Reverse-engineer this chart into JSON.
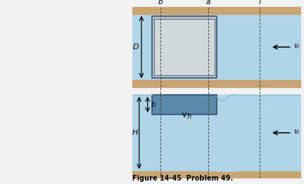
{
  "fig_width": 4.32,
  "fig_height": 2.62,
  "dpi": 100,
  "sand_color": "#c8a472",
  "water_color": "#b0d4e8",
  "water_dark": "#8abcd4",
  "barge_top_gray": "#b8bfc4",
  "barge_inner_light": "#d0d8dc",
  "barge_side_blue": "#5a8aaa",
  "barge_outline": "#2a4a6a",
  "figure_caption": "Figure 14-45  Problem 49.",
  "label_D": "D",
  "label_H": "H",
  "label_d": "d",
  "label_b": "b",
  "label_h": "h",
  "label_a": "a",
  "label_b_pt": "b",
  "label_i": "i",
  "label_vi": "$v_i$",
  "bg_color": "#f2f2f2"
}
